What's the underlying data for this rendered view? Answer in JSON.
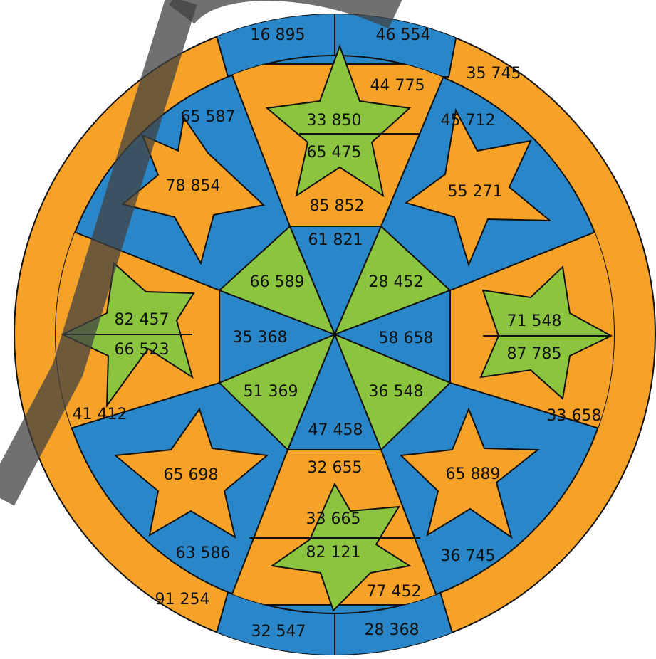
{
  "colors": {
    "orange": "#f6a228",
    "blue": "#2986c8",
    "green": "#8bc540",
    "outline": "#111111",
    "watermark": "#404040"
  },
  "numbers": {
    "top_band_left": "16 895",
    "top_band_right": "46 554",
    "outer_top_right": "35 745",
    "top_star_upper": "33 850",
    "top_star_lower": "65 475",
    "top_trap_right": "44 775",
    "top_trap_bottom": "85 852",
    "upper_left_blue": "65 587",
    "upper_left_star": "78 854",
    "upper_right_blue": "45 712",
    "upper_right_star": "55 271",
    "hex_top": "61 821",
    "hex_upper_left": "66 589",
    "hex_upper_right": "28 452",
    "hex_left": "35 368",
    "hex_right": "58 658",
    "hex_lower_left": "51 369",
    "hex_lower_right": "36 548",
    "hex_bottom": "47 458",
    "left_star_upper": "82 457",
    "left_star_lower": "66 523",
    "left_orange_bottom": "41 412",
    "right_star_upper": "71 548",
    "right_star_lower": "87 785",
    "right_orange_bottom": "33 658",
    "lower_left_star": "65 698",
    "lower_left_blue": "63 586",
    "lower_right_star": "65 889",
    "lower_right_blue": "36 745",
    "bottom_trap_top": "32 655",
    "bottom_star_upper": "33 665",
    "bottom_star_lower": "82 121",
    "bottom_trap_right": "77 452",
    "outer_bottom_left": "91 254",
    "bottom_band_left": "32 547",
    "bottom_band_right": "28 368"
  }
}
